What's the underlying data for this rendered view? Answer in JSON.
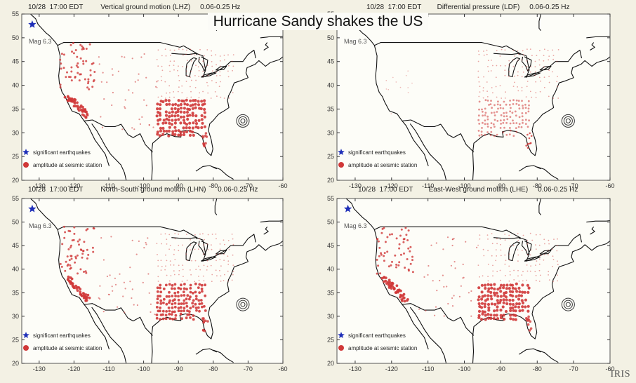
{
  "title": "Hurricane Sandy shakes the US",
  "logo": "IRIS",
  "colors": {
    "amplitude": "#d03838",
    "earthquake": "#1f2fb8",
    "background": "#f3f1e4",
    "frame": "#555555"
  },
  "panels": [
    {
      "date": "10/28",
      "time": "17:00  EDT",
      "component": "Vertical ground motion (LHZ)",
      "band": "0.06-0.25 Hz",
      "mag_label": "Mag 6.3"
    },
    {
      "date": "10/28",
      "time": "17:00  EDT",
      "component": "Differential pressure (LDF)",
      "band": "0.06-0.25 Hz",
      "mag_label": "Mag 6.3"
    },
    {
      "date": "10/28",
      "time": "17:00  EDT",
      "component": "North-South ground motion (LHN)",
      "band": "0.06-0.25 Hz",
      "mag_label": "Mag 6.3"
    },
    {
      "date": "10/28",
      "time": "17:00  EDT",
      "component": "East-West ground motion (LHE)",
      "band": "0.06-0.25 Hz",
      "mag_label": "Mag 6.3"
    }
  ],
  "legend": {
    "earthquake_label": "significant earthquakes",
    "station_label": "amplitude at seismic station"
  },
  "axes": {
    "xlim": [
      -135,
      -60
    ],
    "ylim": [
      20,
      55
    ],
    "xticks": [
      "-130",
      "-120",
      "-110",
      "-100",
      "-90",
      "-80",
      "-70",
      "-60"
    ],
    "yticks": [
      "20",
      "25",
      "30",
      "35",
      "40",
      "45",
      "50",
      "55"
    ]
  },
  "earthquake": {
    "lon": -132.0,
    "lat": 52.8,
    "magnitude": "6.3"
  },
  "hurricane": {
    "lon": -71.5,
    "lat": 32.5,
    "name": "Sandy"
  }
}
